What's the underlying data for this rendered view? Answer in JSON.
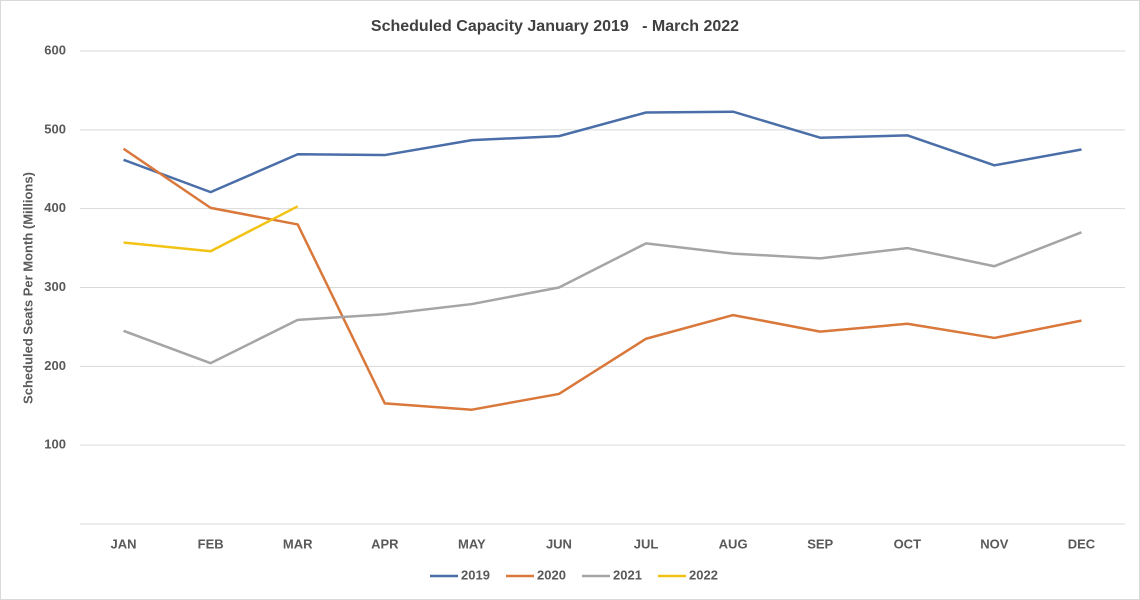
{
  "chart_data": {
    "type": "line",
    "title": "Scheduled Capacity January 2019   - March 2022",
    "y_label": "Scheduled Seats Per Month (Millions)",
    "categories": [
      "JAN",
      "FEB",
      "MAR",
      "APR",
      "MAY",
      "JUN",
      "JUL",
      "AUG",
      "SEP",
      "OCT",
      "NOV",
      "DEC"
    ],
    "series": [
      {
        "name": "2019",
        "color": "#4a6ea8",
        "values": [
          462,
          421,
          469,
          468,
          487,
          492,
          522,
          523,
          490,
          493,
          455,
          475
        ]
      },
      {
        "name": "2020",
        "color": "#d9783a",
        "values": [
          476,
          401,
          380,
          153,
          145,
          165,
          235,
          265,
          244,
          254,
          236,
          258
        ]
      },
      {
        "name": "2021",
        "color": "#a5a5a5",
        "values": [
          245,
          204,
          259,
          266,
          279,
          300,
          356,
          343,
          337,
          350,
          327,
          370
        ]
      },
      {
        "name": "2022",
        "color": "#f2c314",
        "values": [
          357,
          346,
          403,
          null,
          null,
          null,
          null,
          null,
          null,
          null,
          null,
          null
        ]
      }
    ],
    "ylim": [
      0,
      600
    ],
    "yticks": [
      100,
      200,
      300,
      400,
      500,
      600
    ],
    "grid": true,
    "legend": "bottom"
  }
}
